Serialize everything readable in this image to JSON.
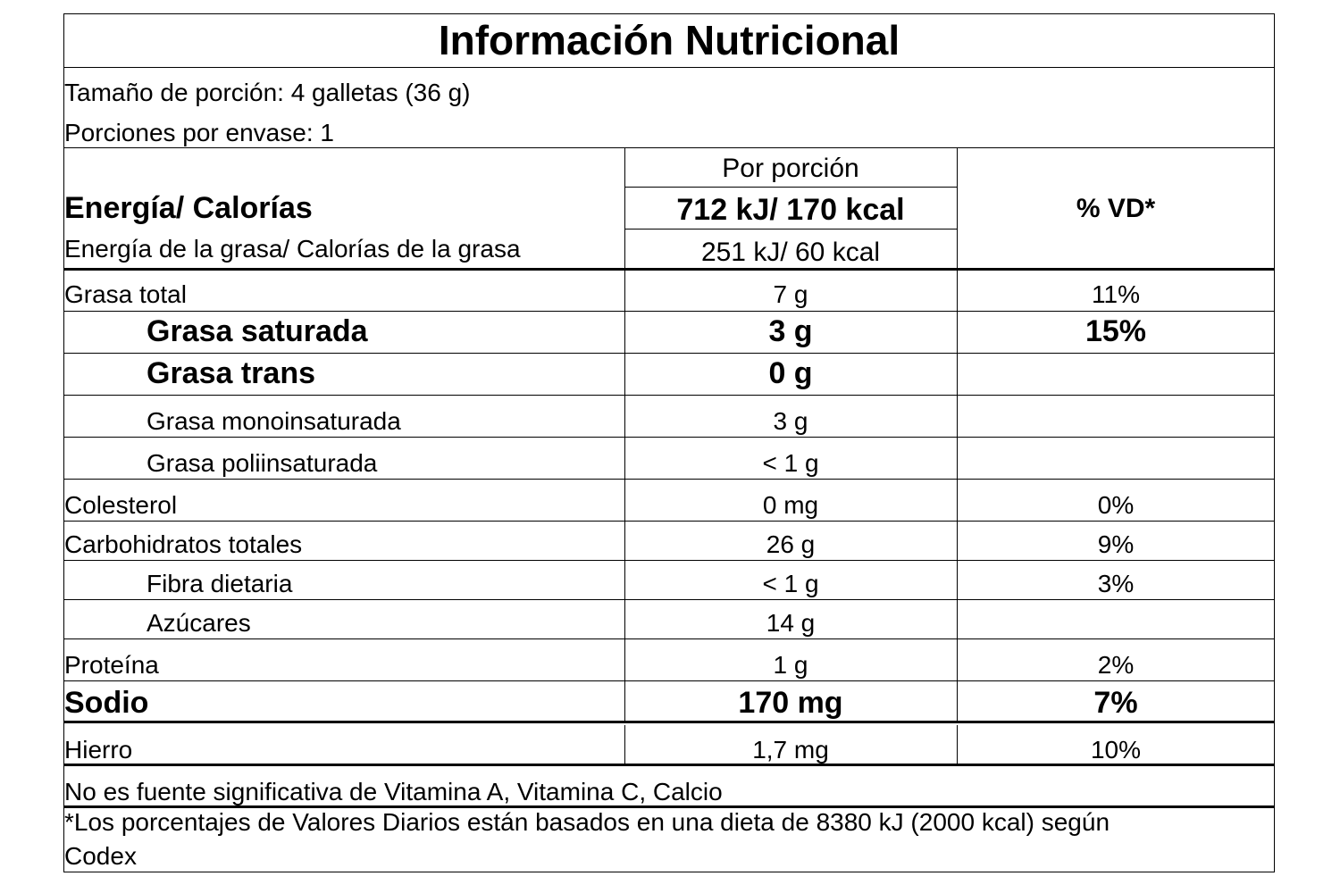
{
  "title": "Información Nutricional",
  "serving_size": "Tamaño de porción: 4 galletas (36 g)",
  "servings_per_container": "Porciones por envase: 1",
  "header": {
    "per_serving": "Por porción",
    "energy_label": "Energía/ Calorías",
    "energy_value": "712 kJ/ 170 kcal",
    "fat_energy_label": "Energía de la grasa/ Calorías de la grasa",
    "fat_energy_value": "251 kJ/ 60 kcal",
    "dv_header": "% VD*"
  },
  "rows": [
    {
      "label": "Grasa total",
      "amount": "7 g",
      "dv": "11%"
    },
    {
      "label": "Grasa saturada",
      "amount": "3 g",
      "dv": "15%"
    },
    {
      "label": "Grasa trans",
      "amount": "0 g",
      "dv": ""
    },
    {
      "label": "Grasa monoinsaturada",
      "amount": "3 g",
      "dv": ""
    },
    {
      "label": "Grasa poliinsaturada",
      "amount": "< 1 g",
      "dv": ""
    },
    {
      "label": "Colesterol",
      "amount": "0 mg",
      "dv": "0%"
    },
    {
      "label": "Carbohidratos totales",
      "amount": "26 g",
      "dv": "9%"
    },
    {
      "label": "Fibra dietaria",
      "amount": "< 1 g",
      "dv": "3%"
    },
    {
      "label": "Azúcares",
      "amount": "14 g",
      "dv": ""
    },
    {
      "label": "Proteína",
      "amount": "1 g",
      "dv": "2%"
    },
    {
      "label": "Sodio",
      "amount": "170 mg",
      "dv": "7%"
    },
    {
      "label": "Hierro",
      "amount": "1,7 mg",
      "dv": "10%"
    }
  ],
  "footnote_sources": "No es fuente significativa de Vitamina A, Vitamina C, Calcio",
  "footnote_dv_line1": "*Los porcentajes de Valores Diarios están basados en una dieta de 8380 kJ (2000 kcal) según",
  "footnote_dv_line2": "Codex"
}
